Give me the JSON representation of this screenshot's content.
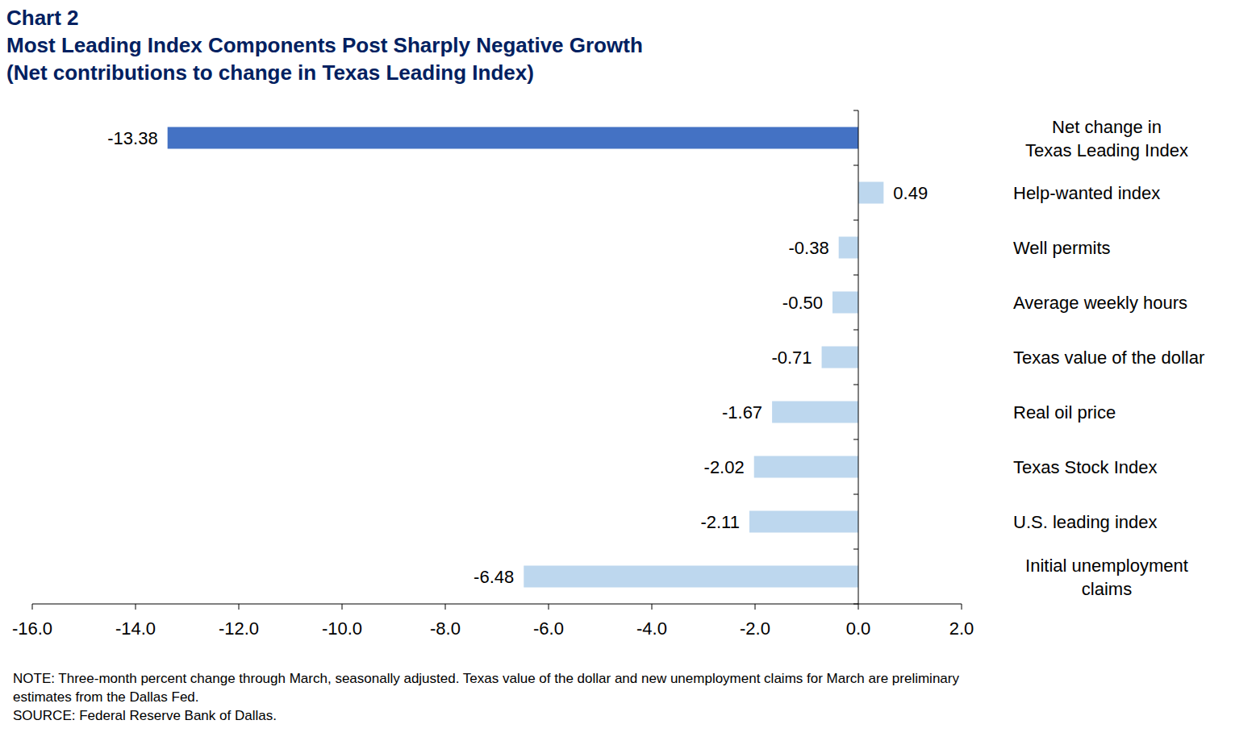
{
  "chart_data": {
    "type": "bar",
    "orientation": "horizontal",
    "label": "Chart 2",
    "title": "Most Leading Index Components Post Sharply Negative Growth",
    "subtitle": "(Net contributions to change in Texas Leading Index)",
    "categories": [
      "Net change in\nTexas Leading Index",
      "Help-wanted index",
      "Well permits",
      "Average weekly hours",
      "Texas value of the dollar",
      "Real oil price",
      "Texas Stock Index",
      "U.S. leading index",
      "Initial unemployment\nclaims"
    ],
    "values": [
      -13.38,
      0.49,
      -0.38,
      -0.5,
      -0.71,
      -1.67,
      -2.02,
      -2.11,
      -6.48
    ],
    "value_labels": [
      "-13.38",
      "0.49",
      "-0.38",
      "-0.50",
      "-0.71",
      "-1.67",
      "-2.02",
      "-2.11",
      "-6.48"
    ],
    "colors": [
      "#4472c4",
      "#bdd7ee",
      "#bdd7ee",
      "#bdd7ee",
      "#bdd7ee",
      "#bdd7ee",
      "#bdd7ee",
      "#bdd7ee",
      "#bdd7ee"
    ],
    "data_labels": true,
    "grid": false,
    "xlim": [
      -16,
      2
    ],
    "xticks": [
      {
        "value": -16,
        "label": "-16.0"
      },
      {
        "value": -14,
        "label": "-14.0"
      },
      {
        "value": -12,
        "label": "-12.0"
      },
      {
        "value": -10,
        "label": "-10.0"
      },
      {
        "value": -8,
        "label": "-8.0"
      },
      {
        "value": -6,
        "label": "-6.0"
      },
      {
        "value": -4,
        "label": "-4.0"
      },
      {
        "value": -2,
        "label": "-2.0"
      },
      {
        "value": 0,
        "label": "0.0"
      },
      {
        "value": 2,
        "label": "2.0"
      }
    ],
    "notes": [
      "NOTE: Three-month percent change through March, seasonally adjusted. Texas value of the dollar and new unemployment claims for March are preliminary",
      "estimates from the Dallas Fed.",
      "SOURCE: Federal Reserve Bank of Dallas."
    ]
  }
}
